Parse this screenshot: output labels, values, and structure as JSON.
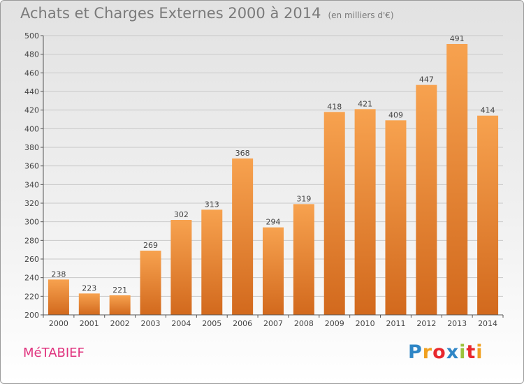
{
  "title": "Achats et Charges Externes 2000 à 2014",
  "subtitle": "(en milliers d'€)",
  "commune": "MéTABIEF",
  "brand": {
    "letters": [
      "P",
      "r",
      "o",
      "x",
      "i",
      "t",
      "i"
    ],
    "colors": [
      "#2f86c6",
      "#f0a020",
      "#e8282e",
      "#2f86c6",
      "#9bc23c",
      "#e8282e",
      "#f0a020"
    ]
  },
  "colors": {
    "bar_top": "#f7a24f",
    "bar_bottom": "#d2691d",
    "grid": "#c8c8c8",
    "axis": "#555555"
  },
  "chart_data": {
    "type": "bar",
    "categories": [
      "2000",
      "2001",
      "2002",
      "2003",
      "2004",
      "2005",
      "2006",
      "2007",
      "2008",
      "2009",
      "2010",
      "2011",
      "2012",
      "2013",
      "2014"
    ],
    "values": [
      238,
      223,
      221,
      269,
      302,
      313,
      368,
      294,
      319,
      418,
      421,
      409,
      447,
      491,
      414
    ],
    "yticks": [
      200,
      220,
      240,
      260,
      280,
      300,
      320,
      340,
      360,
      380,
      400,
      420,
      440,
      460,
      480,
      500
    ],
    "ylim": [
      200,
      500
    ],
    "grid": true
  }
}
